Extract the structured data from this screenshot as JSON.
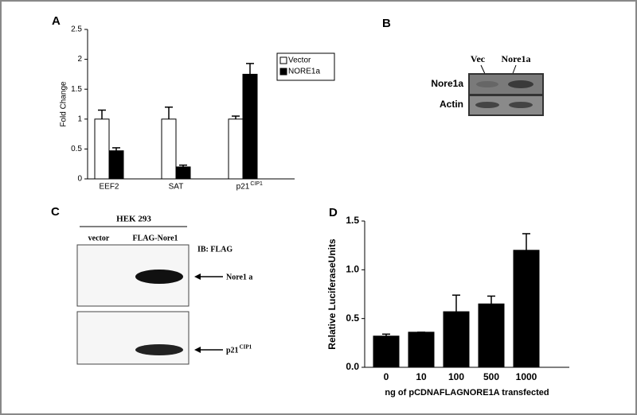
{
  "chart_data": [
    {
      "type": "bar",
      "panel": "A",
      "y_label": "Fold Change",
      "categories": [
        "EEF2",
        "SAT",
        "p21"
      ],
      "category_superscripts": [
        null,
        null,
        "CIP1"
      ],
      "series": [
        {
          "name": "Vector",
          "color": "#ffffff",
          "values": [
            1.0,
            1.0,
            1.0
          ],
          "errors": [
            0.15,
            0.2,
            0.05
          ]
        },
        {
          "name": "NORE1a",
          "color": "#000000",
          "values": [
            0.47,
            0.2,
            1.75
          ],
          "errors": [
            0.05,
            0.03,
            0.18
          ]
        }
      ],
      "ylim": [
        0,
        2.5
      ],
      "yticks": [
        0,
        0.5,
        1,
        1.5,
        2,
        2.5
      ],
      "legend": "upper right"
    },
    {
      "type": "bar",
      "panel": "D",
      "y_label": "Relative LuciferaseUnits",
      "x_label": "ng of pCDNAFLAGNORE1A transfected",
      "categories": [
        "0",
        "10",
        "100",
        "500",
        "1000"
      ],
      "values": [
        0.32,
        0.36,
        0.57,
        0.65,
        1.2
      ],
      "errors": [
        0.02,
        0,
        0.17,
        0.08,
        0.17
      ],
      "color": "#000000",
      "ylim": [
        0,
        1.5
      ],
      "yticks": [
        {
          "value": 0,
          "label": "0.0"
        },
        {
          "value": 0.5,
          "label": "0.5"
        },
        {
          "value": 1,
          "label": "1.0"
        },
        {
          "value": 1.5,
          "label": "1.5"
        }
      ]
    }
  ],
  "blots": {
    "B": {
      "panel": "B",
      "lanes": [
        "Vec",
        "Nore1a"
      ],
      "rows": [
        "Nore1a",
        "Actin"
      ]
    },
    "C": {
      "panel": "C",
      "cell_line": "HEK 293",
      "lanes": [
        "vector",
        "FLAG-Nore1"
      ],
      "antibody": "IB: FLAG",
      "rows": [
        "Nore1 a",
        "p21"
      ],
      "row_superscripts": [
        null,
        "CIP1"
      ]
    }
  }
}
